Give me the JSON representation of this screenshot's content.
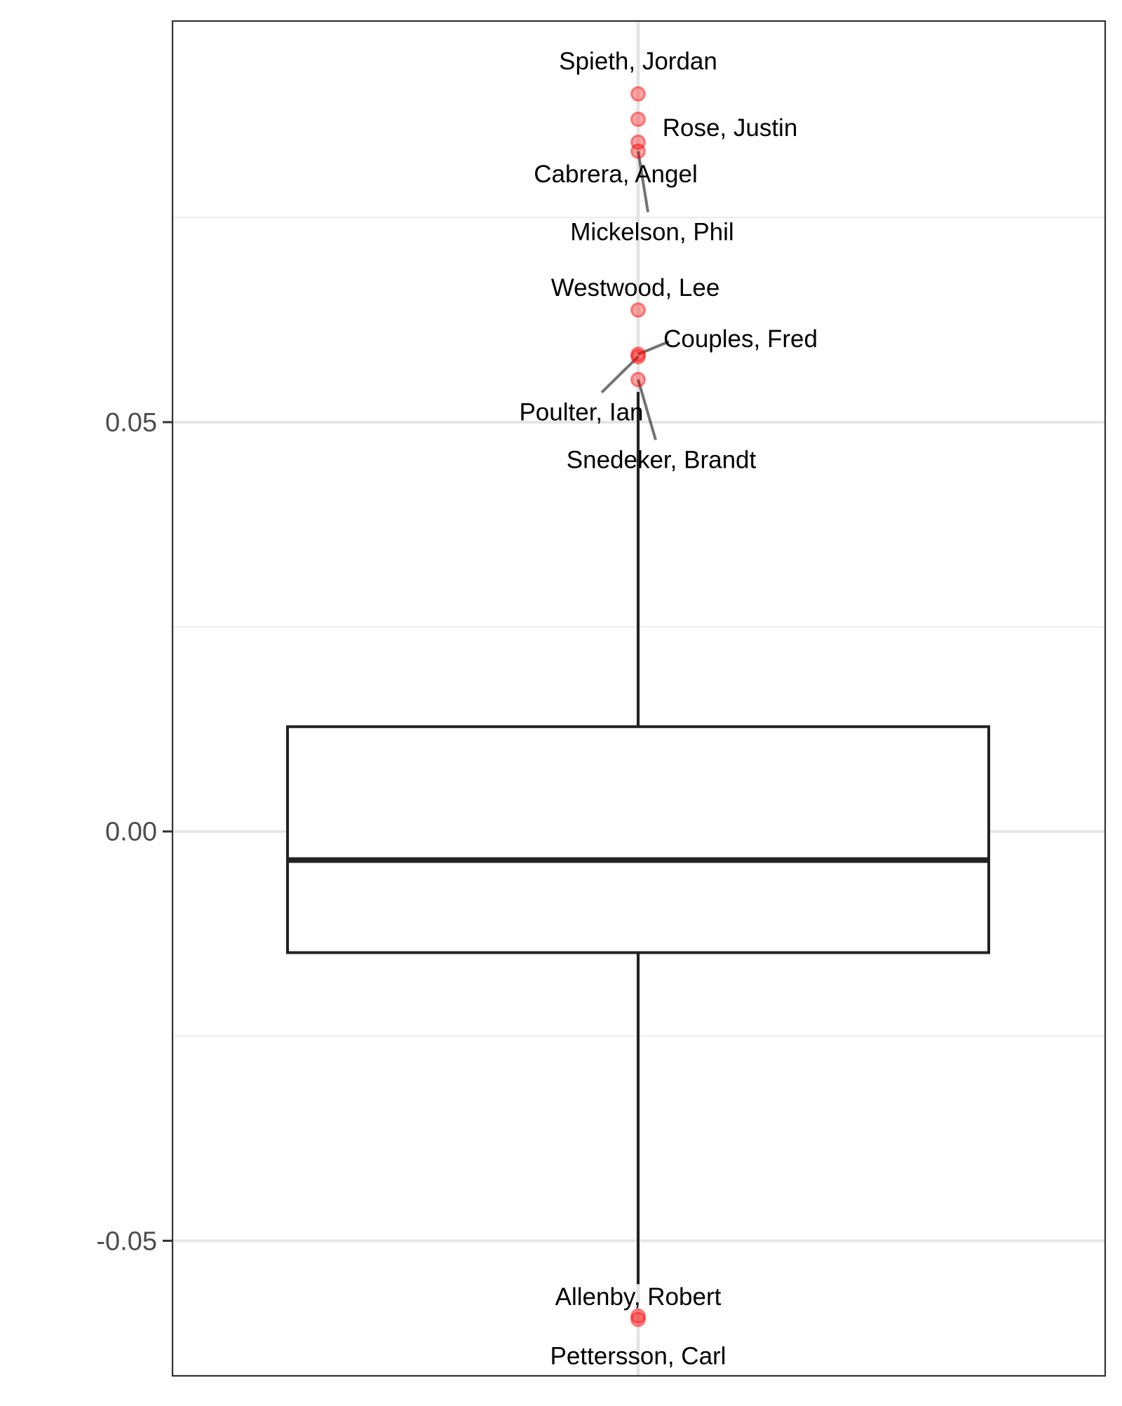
{
  "chart_data": {
    "type": "box",
    "title": "",
    "xlabel": "",
    "ylabel": "",
    "ylim": [
      -0.0665,
      0.099
    ],
    "y_ticks": [
      {
        "value": 0.05,
        "label": "0.05"
      },
      {
        "value": 0.0,
        "label": "0.00"
      },
      {
        "value": -0.05,
        "label": "-0.05"
      }
    ],
    "y_minor_gridlines": [
      0.075,
      0.025,
      -0.025
    ],
    "grid": true,
    "box": {
      "q1": -0.0148,
      "median": -0.0035,
      "q3": 0.0128,
      "whisker_low": -0.0553,
      "whisker_high": 0.0537
    },
    "outlier_color": "#ff0000",
    "outliers": [
      {
        "name": "Spieth, Jordan",
        "value": 0.0901
      },
      {
        "name": "Rose, Justin",
        "value": 0.087
      },
      {
        "name": "Cabrera, Angel",
        "value": 0.0842
      },
      {
        "name": "Mickelson, Phil",
        "value": 0.0831
      },
      {
        "name": "Westwood, Lee",
        "value": 0.0637
      },
      {
        "name": "Couples, Fred",
        "value": 0.0583
      },
      {
        "name": "Poulter, Ian",
        "value": 0.058
      },
      {
        "name": "Snedeker, Brandt",
        "value": 0.0552
      },
      {
        "name": "Allenby, Robert",
        "value": -0.0592
      },
      {
        "name": "Pettersson, Carl",
        "value": -0.0596
      }
    ]
  }
}
